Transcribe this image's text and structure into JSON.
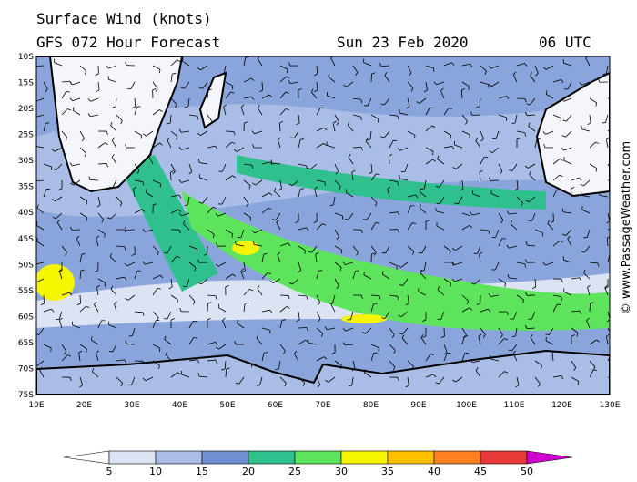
{
  "header": {
    "title": "Surface Wind (knots)",
    "subtitle": "GFS 072 Hour Forecast",
    "date": "Sun 23 Feb 2020",
    "time": "06 UTC"
  },
  "map": {
    "lat_labels": [
      "10S",
      "15S",
      "20S",
      "25S",
      "30S",
      "35S",
      "40S",
      "45S",
      "50S",
      "55S",
      "60S",
      "65S",
      "70S",
      "75S"
    ],
    "lon_labels": [
      "10E",
      "20E",
      "30E",
      "40E",
      "50E",
      "60E",
      "70E",
      "80E",
      "90E",
      "100E",
      "110E",
      "120E",
      "130E"
    ]
  },
  "watermark": "© www.PassageWeather.com",
  "colorbar": {
    "ticks": [
      5,
      10,
      15,
      20,
      25,
      30,
      35,
      40,
      45,
      50
    ],
    "colors": [
      "#ffffff",
      "#dce4f4",
      "#a9bde6",
      "#6f8fd2",
      "#2fc08e",
      "#5ee35c",
      "#f5f500",
      "#ffc000",
      "#ff8020",
      "#e83838",
      "#b00000",
      "#d000d0"
    ]
  }
}
